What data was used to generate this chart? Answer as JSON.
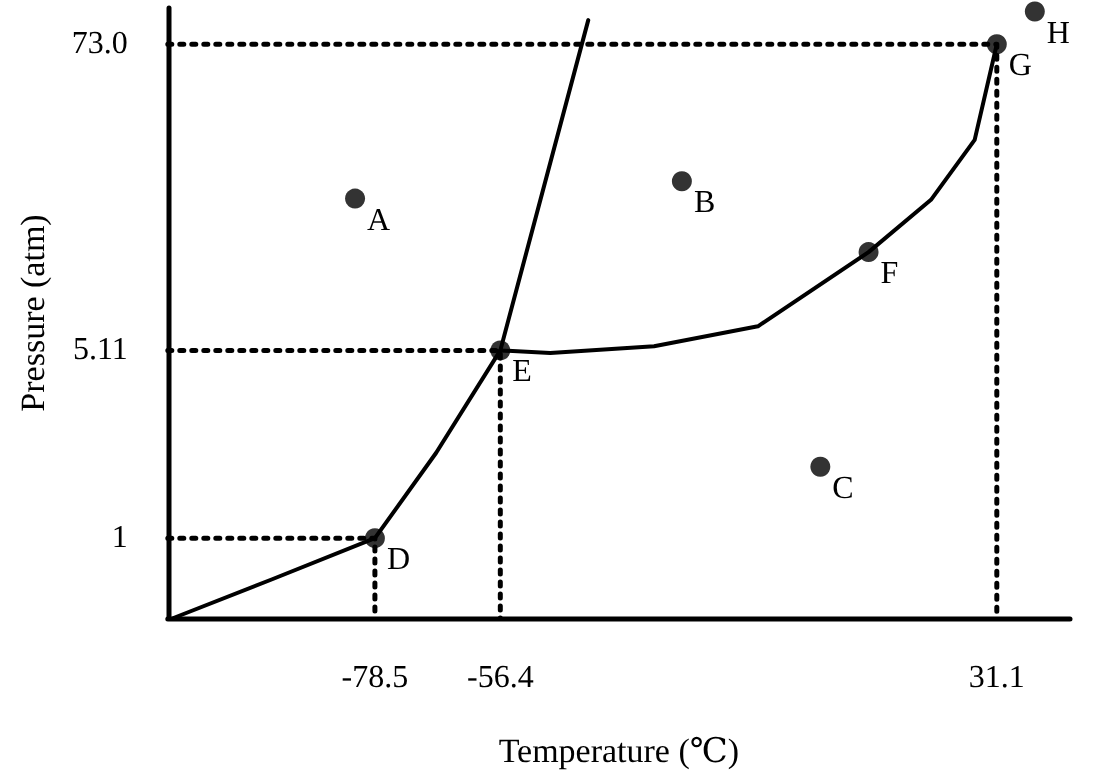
{
  "chart_data": {
    "type": "line",
    "xlabel": "Temperature (℃)",
    "ylabel": "Pressure (atm)",
    "xlim": [
      -115,
      44
    ],
    "ylim": [
      0.5,
      100
    ],
    "log": "y",
    "xticks": [
      -78.5,
      -56.4,
      31.1
    ],
    "yticks": [
      1,
      5.11,
      {
        "value": 73,
        "label": "73.0"
      }
    ],
    "grid": false,
    "marker": "none",
    "line_style": "solid",
    "series": [
      {
        "color": "#000000",
        "x": [
          -114,
          -96.6,
          -78.5,
          -67.7,
          -56.4
        ],
        "values": [
          0.5,
          0.7,
          1,
          2.1,
          5.11
        ]
      },
      {
        "color": "#000000",
        "x": [
          -56.4,
          -40.9
        ],
        "values": [
          5.11,
          90
        ]
      },
      {
        "color": "#000000",
        "x": [
          -56.4,
          -47.6,
          -29.3,
          -11,
          8.5,
          19.5,
          27.2,
          31.1
        ],
        "values": [
          5.11,
          5,
          5.3,
          6.3,
          12,
          18.9,
          31.8,
          73
        ]
      },
      {
        "color": "#000000",
        "line_style": "dotted",
        "x": [
          -115,
          31.1,
          31.1
        ],
        "values": [
          73,
          73,
          0.5
        ]
      },
      {
        "color": "#000000",
        "line_style": "dotted",
        "x": [
          -115,
          -56.4,
          -56.4
        ],
        "values": [
          5.11,
          5.11,
          0.5
        ]
      },
      {
        "color": "#000000",
        "line_style": "dotted",
        "x": [
          -115,
          -78.5,
          -78.5
        ],
        "values": [
          1,
          1,
          0.5
        ]
      },
      {
        "type": "scatter",
        "marker": "circle",
        "color": "#000000",
        "x": [
          -82,
          -24.4,
          0,
          -78.5,
          -56.4,
          8.5,
          31.1,
          37.8
        ],
        "values": [
          19.1,
          22.2,
          1.86,
          1,
          5.11,
          12,
          73,
          97
        ]
      }
    ],
    "annotations": [
      {
        "text": "A",
        "x": -82,
        "y": 19.1
      },
      {
        "text": "B",
        "x": -24.4,
        "y": 22.2
      },
      {
        "text": "C",
        "x": 0,
        "y": 1.86
      },
      {
        "text": "D",
        "x": -78.5,
        "y": 1
      },
      {
        "text": "E",
        "x": -56.4,
        "y": 5.11
      },
      {
        "text": "F",
        "x": 8.5,
        "y": 12
      },
      {
        "text": "G",
        "x": 31.1,
        "y": 73
      },
      {
        "text": "H",
        "x": 37.8,
        "y": 97
      }
    ]
  }
}
